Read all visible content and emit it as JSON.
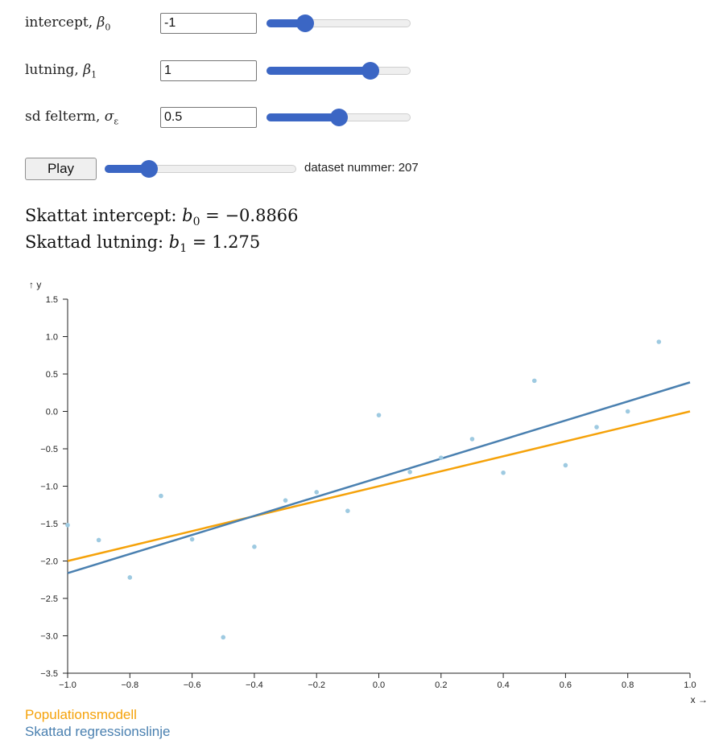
{
  "controls": {
    "intercept": {
      "label_text": "intercept, ",
      "symbol": "β",
      "subscript": "0",
      "value": "-1",
      "slider_fraction": 0.27
    },
    "slope": {
      "label_text": "lutning, ",
      "symbol": "β",
      "subscript": "1",
      "value": "1",
      "slider_fraction": 0.72
    },
    "sd": {
      "label_text": "sd felterm, ",
      "symbol": "σ",
      "subscript": "ε",
      "value": "0.5",
      "slider_fraction": 0.5
    }
  },
  "playback": {
    "play_label": "Play",
    "slider_fraction": 0.23,
    "dataset_label": "dataset nummer: 207"
  },
  "estimates": {
    "intercept_prefix": "Skattat intercept: ",
    "intercept_symbol": "b",
    "intercept_sub": "0",
    "intercept_value": " = −0.8866",
    "slope_prefix": "Skattad lutning: ",
    "slope_symbol": "b",
    "slope_sub": "1",
    "slope_value": " = 1.275"
  },
  "legend": {
    "population": "Populationsmodell",
    "estimated": "Skattad regressionslinje"
  },
  "colors": {
    "population": "#f5a20a",
    "estimated": "#4a80b0",
    "points": "#9ecae1",
    "slider": "#3b66c4"
  },
  "chart_data": {
    "type": "scatter",
    "xlabel": "x →",
    "ylabel": "↑ y",
    "xlim": [
      -1.0,
      1.0
    ],
    "ylim": [
      -3.5,
      1.5
    ],
    "xticks": [
      "−1.0",
      "−0.8",
      "−0.6",
      "−0.4",
      "−0.2",
      "0.0",
      "0.2",
      "0.4",
      "0.6",
      "0.8",
      "1.0"
    ],
    "xtick_values": [
      -1.0,
      -0.8,
      -0.6,
      -0.4,
      -0.2,
      0.0,
      0.2,
      0.4,
      0.6,
      0.8,
      1.0
    ],
    "yticks": [
      "1.5",
      "1.0",
      "0.5",
      "0.0",
      "−0.5",
      "−1.0",
      "−1.5",
      "−2.0",
      "−2.5",
      "−3.0",
      "−3.5"
    ],
    "ytick_values": [
      1.5,
      1.0,
      0.5,
      0.0,
      -0.5,
      -1.0,
      -1.5,
      -2.0,
      -2.5,
      -3.0,
      -3.5
    ],
    "points": [
      [
        -1.0,
        -1.52
      ],
      [
        -0.9,
        -1.72
      ],
      [
        -0.8,
        -2.22
      ],
      [
        -0.7,
        -1.13
      ],
      [
        -0.6,
        -1.71
      ],
      [
        -0.5,
        -3.02
      ],
      [
        -0.4,
        -1.81
      ],
      [
        -0.3,
        -1.19
      ],
      [
        -0.2,
        -1.08
      ],
      [
        -0.1,
        -1.33
      ],
      [
        0.0,
        -0.05
      ],
      [
        0.1,
        -0.81
      ],
      [
        0.2,
        -0.62
      ],
      [
        0.3,
        -0.37
      ],
      [
        0.4,
        -0.82
      ],
      [
        0.5,
        0.41
      ],
      [
        0.6,
        -0.72
      ],
      [
        0.7,
        -0.21
      ],
      [
        0.8,
        0.0
      ],
      [
        0.9,
        0.93
      ]
    ],
    "lines": [
      {
        "name": "Populationsmodell",
        "intercept": -1,
        "slope": 1
      },
      {
        "name": "Skattad regressionslinje",
        "intercept": -0.8866,
        "slope": 1.275
      }
    ]
  }
}
